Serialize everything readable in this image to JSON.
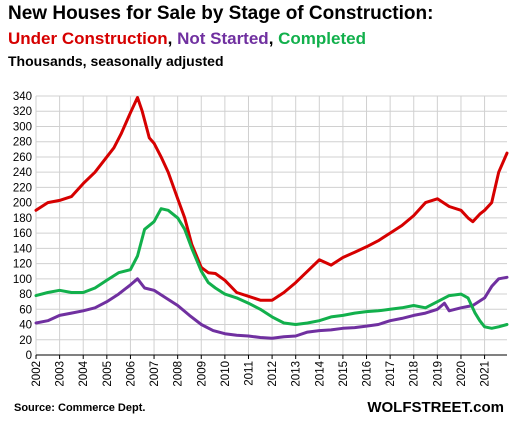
{
  "title": "New Houses for Sale by Stage of Construction:",
  "subtitle": {
    "part1": "Under Construction",
    "sep1": ", ",
    "part2": "Not Started",
    "sep2": ", ",
    "part3": "Completed"
  },
  "units": "Thousands, seasonally adjusted",
  "source": "Source:  Commerce Dept.",
  "brand": "WOLFSTREET.com",
  "colors": {
    "under_construction": "#d60000",
    "not_started": "#7030a0",
    "completed": "#12b04c",
    "grid": "#d0d0d0"
  },
  "chart_data": {
    "type": "line",
    "ylim": [
      0,
      340
    ],
    "y_ticks": [
      0,
      20,
      40,
      60,
      80,
      100,
      120,
      140,
      160,
      180,
      200,
      220,
      240,
      260,
      280,
      300,
      320,
      340
    ],
    "x_ticks": [
      2002,
      2003,
      2004,
      2005,
      2006,
      2007,
      2008,
      2009,
      2010,
      2011,
      2012,
      2013,
      2014,
      2015,
      2016,
      2017,
      2018,
      2019,
      2020,
      2021
    ],
    "xlim": [
      2002,
      2021.95
    ],
    "grid": true,
    "series": [
      {
        "name": "Under Construction",
        "color": "#d60000",
        "x": [
          2002,
          2002.5,
          2003,
          2003.5,
          2004,
          2004.5,
          2005,
          2005.3,
          2005.6,
          2006,
          2006.3,
          2006.5,
          2006.8,
          2007,
          2007.3,
          2007.6,
          2008,
          2008.3,
          2008.6,
          2009,
          2009.3,
          2009.6,
          2010,
          2010.5,
          2011,
          2011.5,
          2012,
          2012.5,
          2013,
          2013.5,
          2014,
          2014.5,
          2015,
          2015.5,
          2016,
          2016.5,
          2017,
          2017.5,
          2018,
          2018.5,
          2019,
          2019.5,
          2020,
          2020.3,
          2020.5,
          2020.8,
          2021,
          2021.3,
          2021.6,
          2021.95
        ],
        "y": [
          190,
          200,
          203,
          208,
          225,
          240,
          260,
          272,
          290,
          318,
          338,
          320,
          285,
          278,
          260,
          240,
          205,
          180,
          145,
          115,
          108,
          107,
          98,
          82,
          77,
          72,
          72,
          82,
          95,
          110,
          125,
          118,
          128,
          135,
          142,
          150,
          160,
          170,
          183,
          200,
          205,
          195,
          190,
          180,
          175,
          185,
          190,
          200,
          240,
          265
        ]
      },
      {
        "name": "Not Started",
        "color": "#7030a0",
        "x": [
          2002,
          2002.5,
          2003,
          2003.5,
          2004,
          2004.5,
          2005,
          2005.5,
          2006,
          2006.3,
          2006.6,
          2007,
          2007.5,
          2008,
          2008.5,
          2009,
          2009.5,
          2010,
          2010.5,
          2011,
          2011.5,
          2012,
          2012.5,
          2013,
          2013.5,
          2014,
          2014.5,
          2015,
          2015.5,
          2016,
          2016.5,
          2017,
          2017.5,
          2018,
          2018.5,
          2019,
          2019.3,
          2019.5,
          2020,
          2020.5,
          2021,
          2021.3,
          2021.6,
          2021.95
        ],
        "y": [
          42,
          45,
          52,
          55,
          58,
          62,
          70,
          80,
          92,
          100,
          88,
          85,
          75,
          65,
          52,
          40,
          32,
          28,
          26,
          25,
          23,
          22,
          24,
          25,
          30,
          32,
          33,
          35,
          36,
          38,
          40,
          45,
          48,
          52,
          55,
          60,
          68,
          58,
          62,
          65,
          75,
          90,
          100,
          102
        ]
      },
      {
        "name": "Completed",
        "color": "#12b04c",
        "x": [
          2002,
          2002.5,
          2003,
          2003.5,
          2004,
          2004.5,
          2005,
          2005.5,
          2006,
          2006.3,
          2006.6,
          2007,
          2007.3,
          2007.6,
          2008,
          2008.3,
          2008.6,
          2009,
          2009.3,
          2009.6,
          2010,
          2010.5,
          2011,
          2011.5,
          2012,
          2012.5,
          2013,
          2013.5,
          2014,
          2014.5,
          2015,
          2015.5,
          2016,
          2016.5,
          2017,
          2017.5,
          2018,
          2018.5,
          2019,
          2019.5,
          2020,
          2020.3,
          2020.6,
          2020.8,
          2021,
          2021.3,
          2021.6,
          2021.95
        ],
        "y": [
          78,
          82,
          85,
          82,
          82,
          88,
          98,
          108,
          112,
          130,
          165,
          175,
          192,
          190,
          180,
          165,
          140,
          110,
          95,
          88,
          80,
          75,
          68,
          60,
          50,
          42,
          40,
          42,
          45,
          50,
          52,
          55,
          57,
          58,
          60,
          62,
          65,
          62,
          70,
          78,
          80,
          75,
          55,
          45,
          37,
          35,
          37,
          40
        ]
      }
    ]
  }
}
